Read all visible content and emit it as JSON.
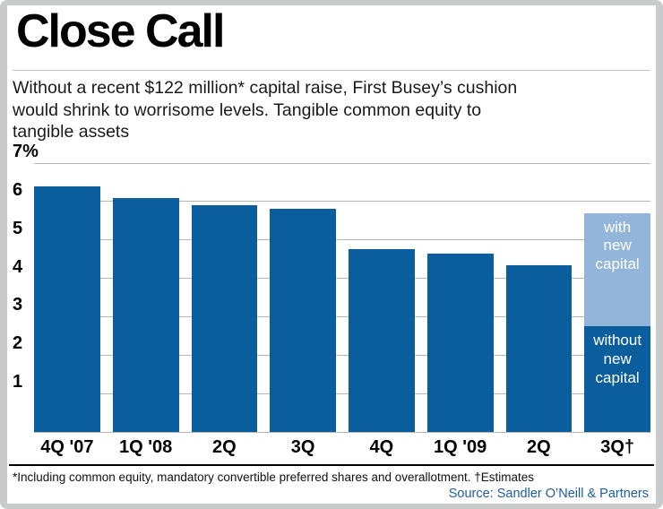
{
  "header": {
    "title": "Close Call",
    "subtitle_lines": [
      "Without a recent $122 million* capital raise, First Busey’s cushion",
      "would shrink to worrisome levels. Tangible common equity to",
      "tangible assets"
    ]
  },
  "chart_data": {
    "type": "bar",
    "stacked": true,
    "title": "Close Call",
    "categories": [
      "4Q '07",
      "1Q '08",
      "2Q",
      "3Q",
      "4Q",
      "1Q '09",
      "2Q",
      "3Q†"
    ],
    "series": [
      {
        "name": "without new capital",
        "color": "#0b5e9d",
        "values": [
          6.4,
          6.1,
          5.9,
          5.8,
          4.75,
          4.65,
          4.35,
          2.75
        ]
      },
      {
        "name": "with new capital",
        "color": "#93b5da",
        "values": [
          null,
          null,
          null,
          null,
          null,
          null,
          null,
          2.95
        ]
      }
    ],
    "ylim": [
      0,
      7
    ],
    "yticks": [
      {
        "value": 7,
        "label": "7%"
      },
      {
        "value": 6,
        "label": "6"
      },
      {
        "value": 5,
        "label": "5"
      },
      {
        "value": 4,
        "label": "4"
      },
      {
        "value": 3,
        "label": "3"
      },
      {
        "value": 2,
        "label": "2"
      },
      {
        "value": 1,
        "label": "1"
      },
      {
        "value": 0,
        "label": ""
      }
    ],
    "grid": true,
    "grid_color": "#b5b5b5",
    "xlabel": "",
    "ylabel": ""
  },
  "footer": {
    "footnote": "*Including common equity, mandatory convertible preferred shares and overallotment. †Estimates",
    "source": "Source: Sandler O’Neill & Partners",
    "source_color": "#1f5da2"
  }
}
